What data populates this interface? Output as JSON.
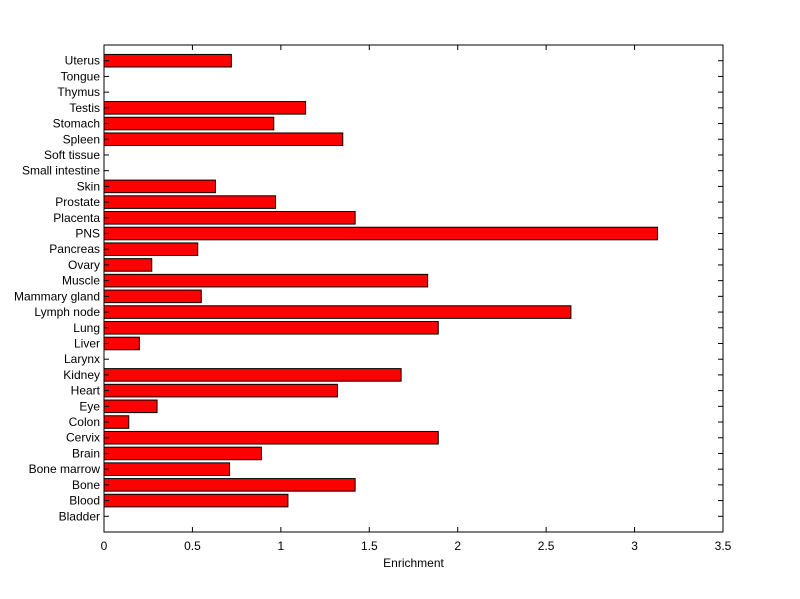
{
  "chart_data": {
    "type": "bar",
    "orientation": "horizontal",
    "title": "",
    "xlabel": "Enrichment",
    "ylabel": "",
    "xlim": [
      0,
      3.5
    ],
    "xticks": [
      "0",
      "0.5",
      "1",
      "1.5",
      "2",
      "2.5",
      "3",
      "3.5"
    ],
    "grid": false,
    "bar_color": "#ff0000",
    "categories": [
      "Bladder",
      "Blood",
      "Bone",
      "Bone marrow",
      "Brain",
      "Cervix",
      "Colon",
      "Eye",
      "Heart",
      "Kidney",
      "Larynx",
      "Liver",
      "Lung",
      "Lymph node",
      "Mammary gland",
      "Muscle",
      "Ovary",
      "Pancreas",
      "PNS",
      "Placenta",
      "Prostate",
      "Skin",
      "Small intestine",
      "Soft tissue",
      "Spleen",
      "Stomach",
      "Testis",
      "Thymus",
      "Tongue",
      "Uterus"
    ],
    "values": [
      0,
      1.04,
      1.42,
      0.71,
      0.89,
      1.89,
      0.14,
      0.3,
      1.32,
      1.68,
      0,
      0.2,
      1.89,
      2.64,
      0.55,
      1.83,
      0.27,
      0.53,
      3.13,
      1.42,
      0.97,
      0.63,
      0,
      0,
      1.35,
      0.96,
      1.14,
      0,
      0,
      0.72
    ]
  }
}
